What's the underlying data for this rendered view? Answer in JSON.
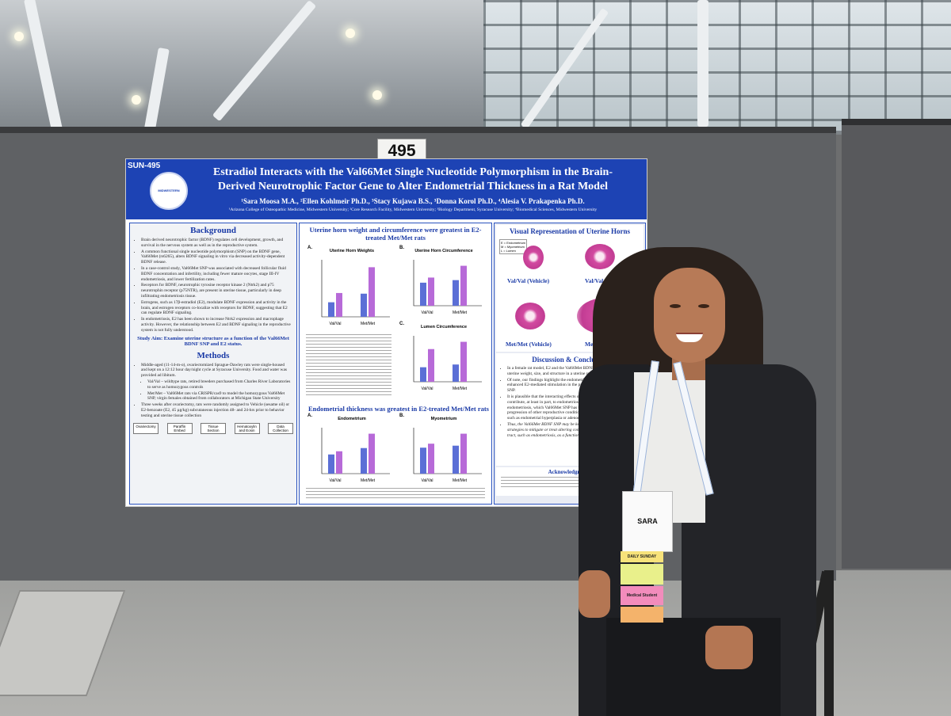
{
  "booth": {
    "number": "495"
  },
  "poster": {
    "id": "SUN-495",
    "logo_text": "MIDWESTERN UNIVERSITY",
    "title_line1": "Estradiol Interacts with the Val66Met Single Nucleotide Polymorphism in the Brain-",
    "title_line2": "Derived Neurotrophic Factor Gene to Alter Endometrial Thickness in a Rat Model",
    "authors": "¹Sara Moosa M.A., ²Ellen Kohlmeir Ph.D., ³Stacy Kujawa B.S., ³Donna Korol Ph.D., ⁴Alesia V. Prakapenka Ph.D.",
    "affiliations": "¹Arizona College of Osteopathic Medicine, Midwestern University; ²Core Research Facility, Midwestern University; ³Biology Department, Syracuse University; ⁴Biomedical Sciences, Midwestern University",
    "background": {
      "heading": "Background",
      "bullets": [
        "Brain derived neurotrophic factor (BDNF) regulates cell development, growth, and survival in the nervous system as well as in the reproductive system.",
        "A common functional single nucleotide polymorphism (SNP) on the BDNF gene, Val66Met (rs6265), alters BDNF signaling in vitro via decreased activity-dependent BDNF release.",
        "In a case-control study, Val66Met SNP was associated with decreased follicular fluid BDNF concentration and infertility, including fewer mature oocytes, stage III-IV endometriosis, and lower fertilization rates.",
        "Receptors for BDNF, neurotrophic tyrosine receptor kinase 2 (Ntrk2) and p75 neurotrophin receptor (p75NTR), are present in uterine tissue, particularly in deep infiltrating endometriosis tissue.",
        "Estrogens, such as 17β-estradiol (E2), modulate BDNF expression and activity in the brain, and estrogen receptors co-localize with receptors for BDNF, suggesting that E2 can regulate BDNF signaling.",
        "In endometriosis, E2 has been shown to increase Ntrk2 expression and macrophage activity. However, the relationship between E2 and BDNF signaling in the reproductive system is not fully understood."
      ],
      "study_aim": "Study Aim: Examine uterine structure as a function of the Val66Met BDNF SNP and E2 status."
    },
    "methods": {
      "heading": "Methods",
      "bullets": [
        "Middle-aged (11-14-m-o), ovariectomized Sprague-Dawley rats were single-housed and kept on a 12:12 hour day/night cycle at Syracuse University. Food and water was provided ad libitum.",
        "Val/Val – wildtype rats, retired breeders purchased from Charles River Laboratories to serve as homozygous controls",
        "Met/Met – Val66Met rats via CRISPR/cas9 to model the homozygous Val66Met SNP, virgin females obtained from collaborators at Michigan State University",
        "Three weeks after ovariectomy, rats were randomly assigned to Vehicle (sesame oil) or E2-benzoate (E2, 45 µg/kg) subcutaneous injection 48- and 24-hrs prior to behavior testing and uterine tissue collection"
      ],
      "flow": [
        "Ovariectomy",
        "Paraffin Embed",
        "Tissue Section",
        "Hematoxylin and Eosin",
        "Data Collection"
      ]
    },
    "results1": {
      "heading": "Uterine horn weight and circumference were greatest in E2-treated Met/Met rats",
      "panel_a_title": "Uterine Horn Weights",
      "panel_b_title": "Uterine Horn Circumference",
      "panel_c_title": "Lumen Circumference",
      "legend_vehicle": "Vehicle",
      "legend_e2": "E2",
      "groups": [
        "Val/Val",
        "Met/Met"
      ]
    },
    "results2": {
      "heading": "Endometrial thickness was greatest in E2-treated Met/Met rats",
      "panel_a_title": "Endometrium",
      "panel_b_title": "Myometrium"
    },
    "visual": {
      "heading": "Visual Representation of Uterine Horns",
      "key": [
        "E = Endometrium",
        "M = Myometrium",
        "L = Lumen"
      ],
      "labels": [
        "Val/Val (Vehicle)",
        "Val/Val (E2)",
        "Met/Met (Vehicle)",
        "Met/Met (E2)"
      ]
    },
    "discussion": {
      "heading": "Discussion & Conclusion",
      "bullets": [
        "In a female rat model, E2 and the Val66Met BDNF SNP interact to modulate uterine weight, size, and structure in a uterine region-specific manner.",
        "Of note, our findings highlight the endometrium as a target structure for enhanced E2-mediated stimulation in the presence of the Val66Met BDNF SNP.",
        "It is plausible that the interacting effects of E2 and the Val66Met BDNF SNP contribute, at least in part, to endometriosis and advanced stages of endometriosis, which Val66Met SNP has been linked to in case studies, or to progression of other reproductive conditions with endometrial thickening, such as endometrial hyperplasia or adenomyosis.",
        "Thus, the Val66Met BDNF SNP may be key to diagnostic and therapeutic strategies to mitigate or treat altering conditions of the female reproductive tract, such as endometriosis, as a function of E2 status."
      ]
    },
    "acknowledgments": {
      "heading": "Acknowledgments"
    }
  },
  "badge": {
    "name": "SARA",
    "ribbons": [
      "DAILY SUNDAY",
      "Medical Student"
    ]
  },
  "chart_data": [
    {
      "type": "bar",
      "title": "Uterine Horn Weights",
      "categories": [
        "Val/Val",
        "Met/Met"
      ],
      "series": [
        {
          "name": "Vehicle",
          "values": [
            0.22,
            0.35
          ]
        },
        {
          "name": "E2",
          "values": [
            0.36,
            0.75
          ]
        }
      ]
    },
    {
      "type": "bar",
      "title": "Uterine Horn Circumference",
      "categories": [
        "Val/Val",
        "Met/Met"
      ],
      "series": [
        {
          "name": "Vehicle",
          "values": [
            4.5,
            5.0
          ]
        },
        {
          "name": "E2",
          "values": [
            5.5,
            7.8
          ]
        }
      ]
    },
    {
      "type": "bar",
      "title": "Lumen Circumference",
      "categories": [
        "Val/Val",
        "Met/Met"
      ],
      "series": [
        {
          "name": "Vehicle",
          "values": [
            1.6,
            1.9
          ]
        },
        {
          "name": "E2",
          "values": [
            3.6,
            4.4
          ]
        }
      ]
    },
    {
      "type": "bar",
      "title": "Endometrium",
      "categories": [
        "Val/Val",
        "Met/Met"
      ],
      "series": [
        {
          "name": "Vehicle",
          "values": [
            1.2,
            1.6
          ]
        },
        {
          "name": "E2",
          "values": [
            1.4,
            2.5
          ]
        }
      ]
    },
    {
      "type": "bar",
      "title": "Myometrium",
      "categories": [
        "Val/Val",
        "Met/Met"
      ],
      "series": [
        {
          "name": "Vehicle",
          "values": [
            1.3,
            1.4
          ]
        },
        {
          "name": "E2",
          "values": [
            1.5,
            2.0
          ]
        }
      ]
    }
  ],
  "colors": {
    "poster_blue": "#1d43b4",
    "bar_vehicle": "#5b6fd6",
    "bar_e2": "#b76ad8",
    "tissue_pink": "#c23c93"
  }
}
